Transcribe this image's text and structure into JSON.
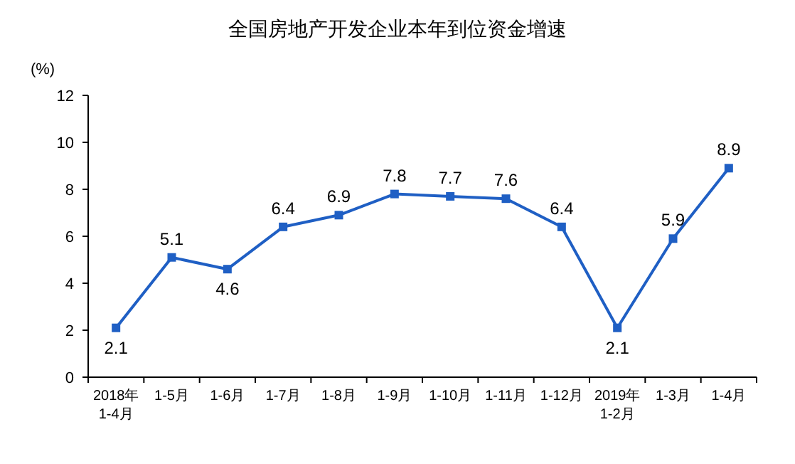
{
  "chart_data": {
    "type": "line",
    "title": "全国房地产开发企业本年到位资金增速",
    "ylabel": "(%)",
    "categories": [
      "2018年\n1-4月",
      "1-5月",
      "1-6月",
      "1-7月",
      "1-8月",
      "1-9月",
      "1-10月",
      "1-11月",
      "1-12月",
      "2019年\n1-2月",
      "1-3月",
      "1-4月"
    ],
    "series": [
      {
        "color": "#1f5fc4",
        "values": [
          2.1,
          5.1,
          4.6,
          6.4,
          6.9,
          7.8,
          7.7,
          7.6,
          6.4,
          2.1,
          5.9,
          8.9
        ]
      }
    ],
    "ylim": [
      0,
      12
    ],
    "yticks": [
      0,
      2,
      4,
      6,
      8,
      10,
      12
    ],
    "marker": "square",
    "data_labels": true,
    "grid": false
  }
}
